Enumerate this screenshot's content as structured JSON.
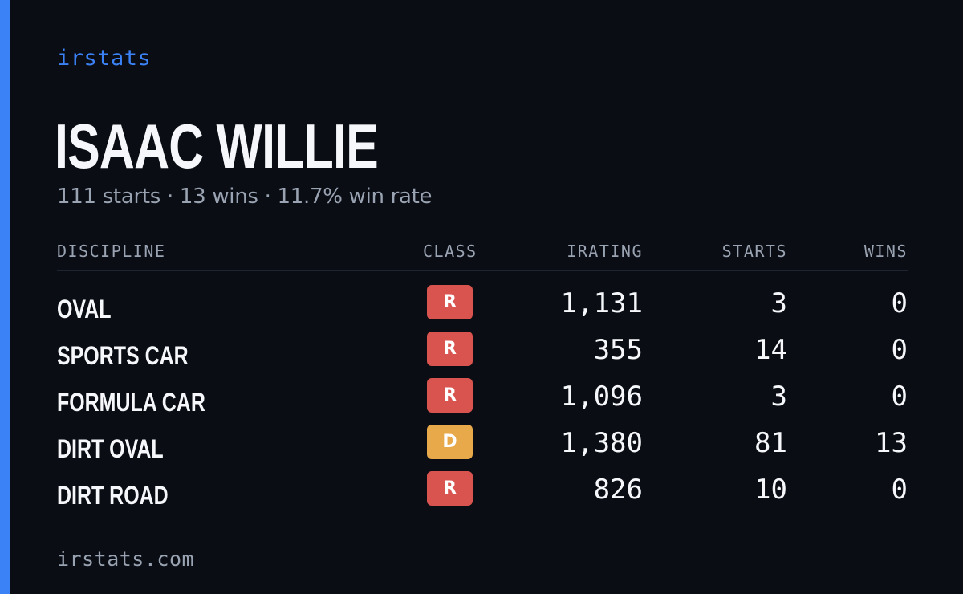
{
  "brand": "irstats",
  "driver": {
    "name": "ISAAC WILLIE",
    "summary": "111 starts · 13 wins · 11.7% win rate"
  },
  "table": {
    "headers": {
      "discipline": "DISCIPLINE",
      "class": "CLASS",
      "irating": "IRATING",
      "starts": "STARTS",
      "wins": "WINS"
    },
    "rows": [
      {
        "discipline": "OVAL",
        "class": "R",
        "class_color": "#d9534f",
        "irating": "1,131",
        "starts": "3",
        "wins": "0"
      },
      {
        "discipline": "SPORTS CAR",
        "class": "R",
        "class_color": "#d9534f",
        "irating": "355",
        "starts": "14",
        "wins": "0"
      },
      {
        "discipline": "FORMULA CAR",
        "class": "R",
        "class_color": "#d9534f",
        "irating": "1,096",
        "starts": "3",
        "wins": "0"
      },
      {
        "discipline": "DIRT OVAL",
        "class": "D",
        "class_color": "#e8a94a",
        "irating": "1,380",
        "starts": "81",
        "wins": "13"
      },
      {
        "discipline": "DIRT ROAD",
        "class": "R",
        "class_color": "#d9534f",
        "irating": "826",
        "starts": "10",
        "wins": "0"
      }
    ]
  },
  "footer": "irstats.com",
  "colors": {
    "background": "#0a0d14",
    "accent": "#3b82f6"
  }
}
